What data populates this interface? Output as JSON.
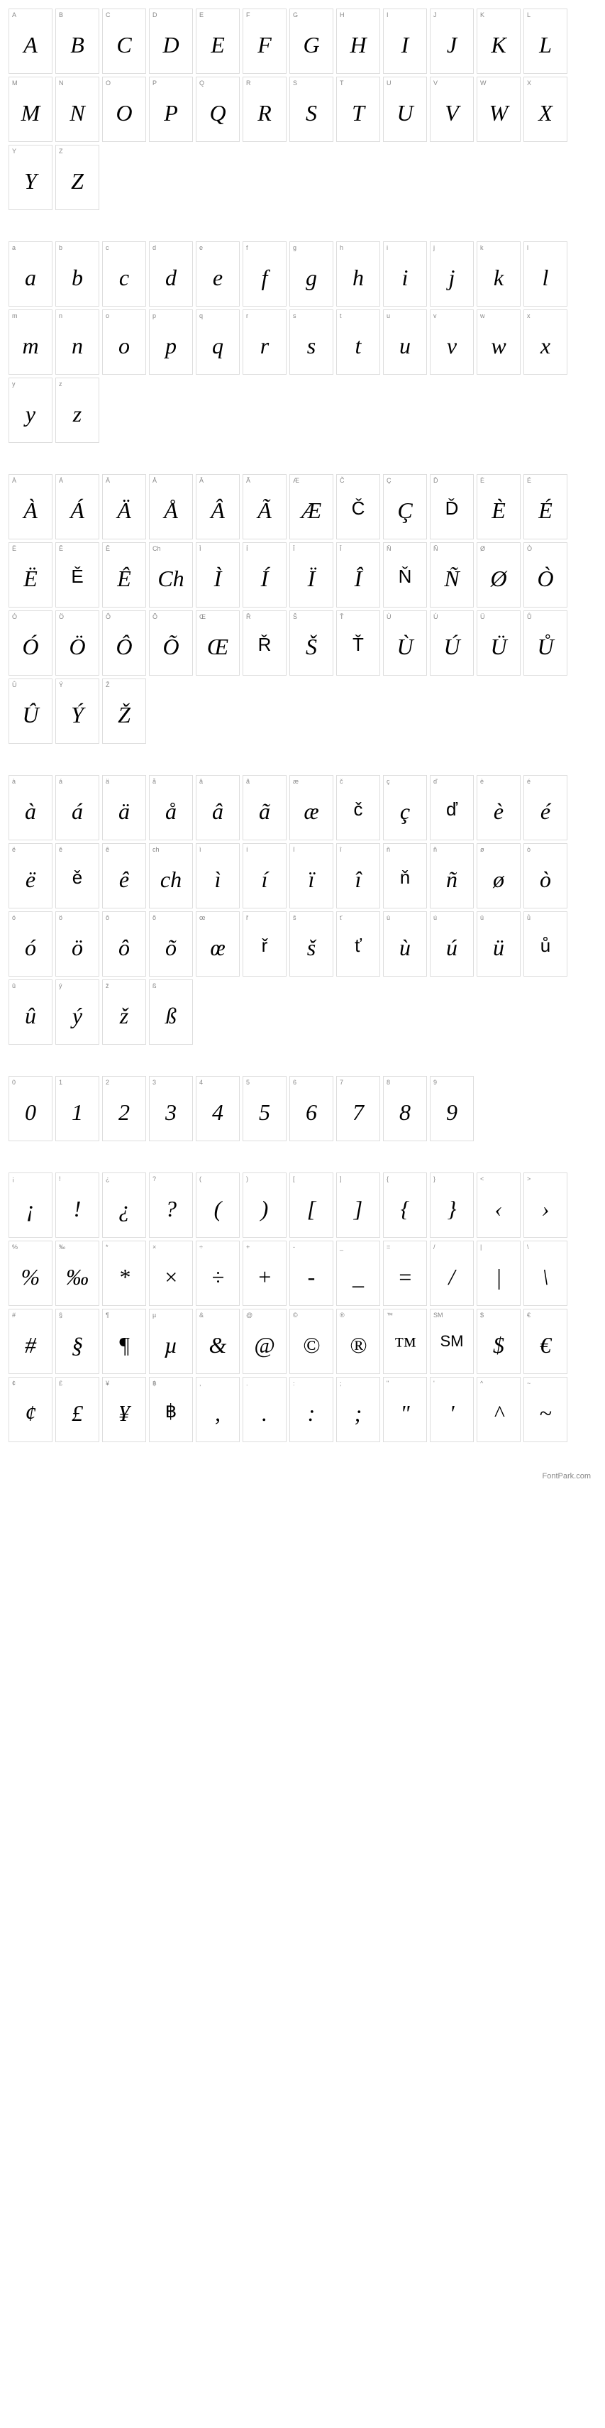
{
  "footer": "FontPark.com",
  "sections": [
    {
      "id": "upper",
      "cells": [
        {
          "l": "A",
          "g": "A"
        },
        {
          "l": "B",
          "g": "B"
        },
        {
          "l": "C",
          "g": "C"
        },
        {
          "l": "D",
          "g": "D"
        },
        {
          "l": "E",
          "g": "E"
        },
        {
          "l": "F",
          "g": "F"
        },
        {
          "l": "G",
          "g": "G"
        },
        {
          "l": "H",
          "g": "H"
        },
        {
          "l": "I",
          "g": "I"
        },
        {
          "l": "J",
          "g": "J"
        },
        {
          "l": "K",
          "g": "K"
        },
        {
          "l": "L",
          "g": "L"
        },
        {
          "l": "M",
          "g": "M"
        },
        {
          "l": "N",
          "g": "N"
        },
        {
          "l": "O",
          "g": "O"
        },
        {
          "l": "P",
          "g": "P"
        },
        {
          "l": "Q",
          "g": "Q"
        },
        {
          "l": "R",
          "g": "R"
        },
        {
          "l": "S",
          "g": "S"
        },
        {
          "l": "T",
          "g": "T"
        },
        {
          "l": "U",
          "g": "U"
        },
        {
          "l": "V",
          "g": "V"
        },
        {
          "l": "W",
          "g": "W"
        },
        {
          "l": "X",
          "g": "X"
        },
        {
          "l": "Y",
          "g": "Y"
        },
        {
          "l": "Z",
          "g": "Z"
        }
      ]
    },
    {
      "id": "lower",
      "cells": [
        {
          "l": "a",
          "g": "a"
        },
        {
          "l": "b",
          "g": "b"
        },
        {
          "l": "c",
          "g": "c"
        },
        {
          "l": "d",
          "g": "d"
        },
        {
          "l": "e",
          "g": "e"
        },
        {
          "l": "f",
          "g": "f"
        },
        {
          "l": "g",
          "g": "g"
        },
        {
          "l": "h",
          "g": "h"
        },
        {
          "l": "i",
          "g": "i"
        },
        {
          "l": "j",
          "g": "j"
        },
        {
          "l": "k",
          "g": "k"
        },
        {
          "l": "l",
          "g": "l"
        },
        {
          "l": "m",
          "g": "m"
        },
        {
          "l": "n",
          "g": "n"
        },
        {
          "l": "o",
          "g": "o"
        },
        {
          "l": "p",
          "g": "p"
        },
        {
          "l": "q",
          "g": "q"
        },
        {
          "l": "r",
          "g": "r"
        },
        {
          "l": "s",
          "g": "s"
        },
        {
          "l": "t",
          "g": "t"
        },
        {
          "l": "u",
          "g": "u"
        },
        {
          "l": "v",
          "g": "v"
        },
        {
          "l": "w",
          "g": "w"
        },
        {
          "l": "x",
          "g": "x"
        },
        {
          "l": "y",
          "g": "y"
        },
        {
          "l": "z",
          "g": "z"
        }
      ]
    },
    {
      "id": "upper-accent",
      "cells": [
        {
          "l": "À",
          "g": "À"
        },
        {
          "l": "Á",
          "g": "Á"
        },
        {
          "l": "Ä",
          "g": "Ä"
        },
        {
          "l": "Å",
          "g": "Å"
        },
        {
          "l": "Â",
          "g": "Â"
        },
        {
          "l": "Ã",
          "g": "Ã"
        },
        {
          "l": "Æ",
          "g": "Æ"
        },
        {
          "l": "Č",
          "g": "Č",
          "sans": true
        },
        {
          "l": "Ç",
          "g": "Ç"
        },
        {
          "l": "Ď",
          "g": "Ď",
          "sans": true
        },
        {
          "l": "È",
          "g": "È"
        },
        {
          "l": "É",
          "g": "É"
        },
        {
          "l": "Ë",
          "g": "Ë"
        },
        {
          "l": "Ě",
          "g": "Ě",
          "sans": true
        },
        {
          "l": "Ê",
          "g": "Ê"
        },
        {
          "l": "Ch",
          "g": "Ch"
        },
        {
          "l": "Ì",
          "g": "Ì"
        },
        {
          "l": "Í",
          "g": "Í"
        },
        {
          "l": "Ï",
          "g": "Ï"
        },
        {
          "l": "Î",
          "g": "Î"
        },
        {
          "l": "Ň",
          "g": "Ň",
          "sans": true
        },
        {
          "l": "Ñ",
          "g": "Ñ"
        },
        {
          "l": "Ø",
          "g": "Ø"
        },
        {
          "l": "Ò",
          "g": "Ò"
        },
        {
          "l": "Ó",
          "g": "Ó"
        },
        {
          "l": "Ö",
          "g": "Ö"
        },
        {
          "l": "Ô",
          "g": "Ô"
        },
        {
          "l": "Õ",
          "g": "Õ"
        },
        {
          "l": "Œ",
          "g": "Œ"
        },
        {
          "l": "Ř",
          "g": "Ř",
          "sans": true
        },
        {
          "l": "Š",
          "g": "Š"
        },
        {
          "l": "Ť",
          "g": "Ť",
          "sans": true
        },
        {
          "l": "Ù",
          "g": "Ù"
        },
        {
          "l": "Ú",
          "g": "Ú"
        },
        {
          "l": "Ü",
          "g": "Ü"
        },
        {
          "l": "Ů",
          "g": "Ů"
        },
        {
          "l": "Û",
          "g": "Û"
        },
        {
          "l": "Ý",
          "g": "Ý"
        },
        {
          "l": "Ž",
          "g": "Ž"
        }
      ]
    },
    {
      "id": "lower-accent",
      "cells": [
        {
          "l": "à",
          "g": "à"
        },
        {
          "l": "á",
          "g": "á"
        },
        {
          "l": "ä",
          "g": "ä"
        },
        {
          "l": "å",
          "g": "å"
        },
        {
          "l": "â",
          "g": "â"
        },
        {
          "l": "ã",
          "g": "ã"
        },
        {
          "l": "æ",
          "g": "æ"
        },
        {
          "l": "č",
          "g": "č",
          "sans": true
        },
        {
          "l": "ç",
          "g": "ç"
        },
        {
          "l": "ď",
          "g": "ď",
          "sans": true
        },
        {
          "l": "è",
          "g": "è"
        },
        {
          "l": "é",
          "g": "é"
        },
        {
          "l": "ë",
          "g": "ë"
        },
        {
          "l": "ě",
          "g": "ě",
          "sans": true
        },
        {
          "l": "ê",
          "g": "ê"
        },
        {
          "l": "ch",
          "g": "ch"
        },
        {
          "l": "ì",
          "g": "ì"
        },
        {
          "l": "í",
          "g": "í"
        },
        {
          "l": "ï",
          "g": "ï"
        },
        {
          "l": "î",
          "g": "î"
        },
        {
          "l": "ň",
          "g": "ň",
          "sans": true
        },
        {
          "l": "ñ",
          "g": "ñ"
        },
        {
          "l": "ø",
          "g": "ø"
        },
        {
          "l": "ò",
          "g": "ò"
        },
        {
          "l": "ó",
          "g": "ó"
        },
        {
          "l": "ö",
          "g": "ö"
        },
        {
          "l": "ô",
          "g": "ô"
        },
        {
          "l": "õ",
          "g": "õ"
        },
        {
          "l": "œ",
          "g": "œ"
        },
        {
          "l": "ř",
          "g": "ř",
          "sans": true
        },
        {
          "l": "š",
          "g": "š"
        },
        {
          "l": "ť",
          "g": "ť",
          "sans": true
        },
        {
          "l": "ù",
          "g": "ù"
        },
        {
          "l": "ú",
          "g": "ú"
        },
        {
          "l": "ü",
          "g": "ü"
        },
        {
          "l": "ů",
          "g": "ů",
          "sans": true
        },
        {
          "l": "û",
          "g": "û"
        },
        {
          "l": "ý",
          "g": "ý"
        },
        {
          "l": "ž",
          "g": "ž"
        },
        {
          "l": "ß",
          "g": "ß"
        }
      ]
    },
    {
      "id": "digits",
      "cells": [
        {
          "l": "0",
          "g": "0"
        },
        {
          "l": "1",
          "g": "1"
        },
        {
          "l": "2",
          "g": "2"
        },
        {
          "l": "3",
          "g": "3"
        },
        {
          "l": "4",
          "g": "4"
        },
        {
          "l": "5",
          "g": "5"
        },
        {
          "l": "6",
          "g": "6"
        },
        {
          "l": "7",
          "g": "7"
        },
        {
          "l": "8",
          "g": "8"
        },
        {
          "l": "9",
          "g": "9"
        }
      ]
    },
    {
      "id": "symbols",
      "cells": [
        {
          "l": "¡",
          "g": "¡"
        },
        {
          "l": "!",
          "g": "!"
        },
        {
          "l": "¿",
          "g": "¿"
        },
        {
          "l": "?",
          "g": "?"
        },
        {
          "l": "(",
          "g": "("
        },
        {
          "l": ")",
          "g": ")"
        },
        {
          "l": "[",
          "g": "["
        },
        {
          "l": "]",
          "g": "]"
        },
        {
          "l": "{",
          "g": "{"
        },
        {
          "l": "}",
          "g": "}"
        },
        {
          "l": "<",
          "g": "‹"
        },
        {
          "l": ">",
          "g": "›"
        },
        {
          "l": "%",
          "g": "%"
        },
        {
          "l": "‰",
          "g": "‰"
        },
        {
          "l": "*",
          "g": "*"
        },
        {
          "l": "×",
          "g": "×"
        },
        {
          "l": "÷",
          "g": "÷"
        },
        {
          "l": "+",
          "g": "+"
        },
        {
          "l": "-",
          "g": "-"
        },
        {
          "l": "_",
          "g": "_"
        },
        {
          "l": "=",
          "g": "="
        },
        {
          "l": "/",
          "g": "/"
        },
        {
          "l": "|",
          "g": "|"
        },
        {
          "l": "\\",
          "g": "\\"
        },
        {
          "l": "#",
          "g": "#"
        },
        {
          "l": "§",
          "g": "§"
        },
        {
          "l": "¶",
          "g": "¶"
        },
        {
          "l": "µ",
          "g": "µ"
        },
        {
          "l": "&",
          "g": "&"
        },
        {
          "l": "@",
          "g": "@"
        },
        {
          "l": "©",
          "g": "©"
        },
        {
          "l": "®",
          "g": "®"
        },
        {
          "l": "™",
          "g": "™"
        },
        {
          "l": "SM",
          "g": "SM",
          "sans": true,
          "small": true
        },
        {
          "l": "$",
          "g": "$"
        },
        {
          "l": "€",
          "g": "€"
        },
        {
          "l": "¢",
          "g": "¢"
        },
        {
          "l": "£",
          "g": "£"
        },
        {
          "l": "¥",
          "g": "¥"
        },
        {
          "l": "฿",
          "g": "฿",
          "sans": true
        },
        {
          "l": ",",
          "g": ","
        },
        {
          "l": ".",
          "g": "."
        },
        {
          "l": ":",
          "g": ":"
        },
        {
          "l": ";",
          "g": ";"
        },
        {
          "l": "\"",
          "g": "\""
        },
        {
          "l": "'",
          "g": "'"
        },
        {
          "l": "^",
          "g": "^"
        },
        {
          "l": "~",
          "g": "~"
        }
      ]
    }
  ],
  "colors": {
    "border": "#dddddd",
    "label": "#888888",
    "glyph": "#000000",
    "bg": "#ffffff"
  }
}
